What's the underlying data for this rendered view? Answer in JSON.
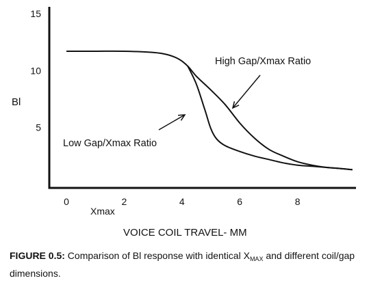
{
  "chart_data": {
    "type": "line",
    "xlabel": "VOICE COIL TRAVEL- MM",
    "ylabel": "Bl",
    "x_marker_label": "Xmax",
    "xlim": [
      0,
      10.0
    ],
    "ylim": [
      0,
      15
    ],
    "x_ticks": [
      0,
      2,
      4,
      6,
      8
    ],
    "y_ticks": [
      5,
      10,
      15
    ],
    "grid": false,
    "annotations": [
      "High Gap/Xmax Ratio",
      "Low Gap/Xmax Ratio"
    ],
    "series": [
      {
        "x": [
          0,
          1,
          2,
          3,
          3.5,
          3.9,
          4.2,
          4.5,
          5.0,
          5.5,
          6.0,
          6.5,
          7.0,
          7.5,
          8.0,
          8.5,
          9.0,
          9.5,
          9.9
        ],
        "y": [
          11.7,
          11.7,
          11.7,
          11.6,
          11.4,
          11.0,
          10.4,
          9.5,
          8.3,
          7.0,
          5.4,
          4.1,
          3.1,
          2.5,
          2.0,
          1.7,
          1.5,
          1.4,
          1.3
        ]
      },
      {
        "x": [
          4.2,
          4.5,
          4.8,
          5.0,
          5.2,
          5.5,
          6.0,
          6.5,
          7.0,
          7.5,
          8.0,
          8.5,
          9.0,
          9.5,
          9.9
        ],
        "y": [
          10.4,
          8.8,
          6.5,
          4.9,
          4.0,
          3.4,
          2.9,
          2.5,
          2.2,
          1.9,
          1.7,
          1.6,
          1.5,
          1.4,
          1.3
        ]
      }
    ]
  },
  "caption": {
    "figure_label": "FIGURE 0.5:",
    "text_before_sub": " Comparison of Bl response with identical X",
    "subscript": "MAX",
    "text_after_sub": " and different coil/gap dimensions."
  }
}
